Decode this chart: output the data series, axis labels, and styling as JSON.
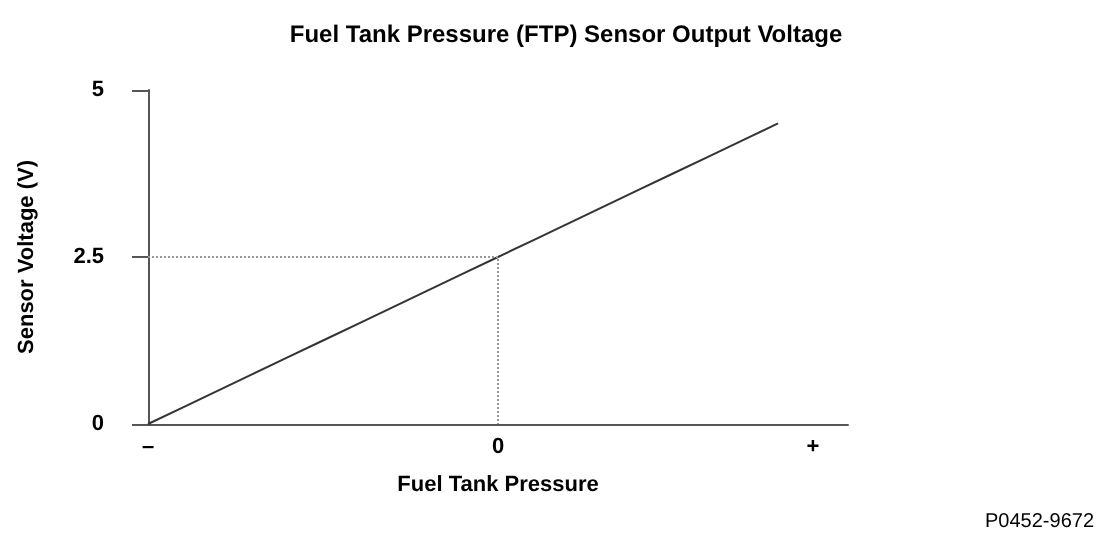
{
  "chart_data": {
    "type": "line",
    "title": "Fuel Tank Pressure (FTP) Sensor Output Voltage",
    "xlabel": "Fuel Tank Pressure",
    "ylabel": "Sensor Voltage (V)",
    "annotations": [
      "P0452-9672"
    ],
    "categories": [
      "–",
      null,
      null,
      null,
      null,
      null,
      null,
      null,
      null,
      null,
      "0",
      null,
      null,
      null,
      null,
      null,
      null,
      null,
      null,
      "+",
      null
    ],
    "ylim": [
      0,
      5
    ],
    "yticks": [
      0,
      2.5,
      5
    ],
    "grid": false,
    "marker": "none",
    "series": [
      {
        "color": "#333333",
        "line_style": "solid",
        "values": [
          0,
          0.25,
          0.5,
          0.75,
          1,
          1.25,
          1.5,
          1.75,
          2,
          2.25,
          2.5,
          2.75,
          3,
          3.25,
          3.5,
          3.75,
          4,
          4.25,
          4.5,
          null,
          null
        ]
      },
      {
        "color": "#999999",
        "line_style": "dotted",
        "x": [
          "–",
          "0",
          "0"
        ],
        "values": [
          2.5,
          2.5,
          0
        ]
      }
    ]
  }
}
